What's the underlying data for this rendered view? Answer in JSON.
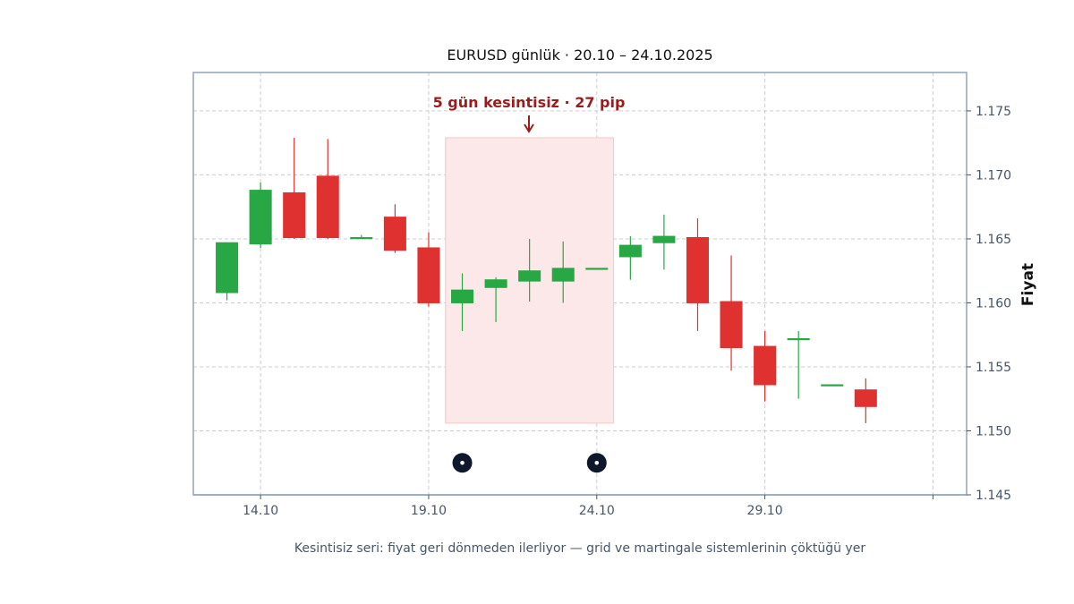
{
  "chart_data": {
    "type": "candlestick",
    "title": "EURUSD günlük · 20.10 – 24.10.2025",
    "ylabel": "Fiyat",
    "caption": "Kesintisiz seri: fiyat geri dönmeden ilerliyor — grid ve martingale sistemlerinin çöktüğü yer",
    "annotation": "5 gün kesintisiz · 27 pip",
    "ylim": [
      1.145,
      1.178
    ],
    "xlim": [
      -1,
      22
    ],
    "y_ticks": [
      "1.145",
      "1.150",
      "1.155",
      "1.160",
      "1.165",
      "1.170",
      "1.175"
    ],
    "x_ticks": [
      {
        "index": 1,
        "label": "14.10"
      },
      {
        "index": 6,
        "label": "19.10"
      },
      {
        "index": 11,
        "label": "24.10"
      },
      {
        "index": 16,
        "label": "29.10"
      },
      {
        "index": 21,
        "label": ""
      }
    ],
    "highlight_range": {
      "from_index": 6.5,
      "to_index": 11.5,
      "low": 1.1506,
      "high": 1.1729
    },
    "markers": [
      {
        "index": 7,
        "price": 1.1475
      },
      {
        "index": 11,
        "price": 1.1475
      }
    ],
    "grid": true,
    "colors": {
      "up": "#28a745",
      "down": "#e03131",
      "highlight": "#fce8e8",
      "marker": "#0f172a",
      "annotation": "#9b1c1c",
      "frame": "#94a3b8"
    },
    "candles": [
      {
        "o": 1.1608,
        "h": 1.1647,
        "l": 1.1602,
        "c": 1.1647
      },
      {
        "o": 1.1646,
        "h": 1.1694,
        "l": 1.1643,
        "c": 1.1688
      },
      {
        "o": 1.1686,
        "h": 1.1729,
        "l": 1.165,
        "c": 1.1651
      },
      {
        "o": 1.1699,
        "h": 1.1728,
        "l": 1.165,
        "c": 1.1651
      },
      {
        "o": 1.1651,
        "h": 1.1653,
        "l": 1.165,
        "c": 1.1651
      },
      {
        "o": 1.1667,
        "h": 1.1677,
        "l": 1.1639,
        "c": 1.1641
      },
      {
        "o": 1.1643,
        "h": 1.1655,
        "l": 1.1597,
        "c": 1.16
      },
      {
        "o": 1.16,
        "h": 1.1623,
        "l": 1.1578,
        "c": 1.161
      },
      {
        "o": 1.1612,
        "h": 1.162,
        "l": 1.1585,
        "c": 1.1618
      },
      {
        "o": 1.1617,
        "h": 1.165,
        "l": 1.1601,
        "c": 1.1625
      },
      {
        "o": 1.1617,
        "h": 1.1648,
        "l": 1.16,
        "c": 1.1627
      },
      {
        "o": 1.1627,
        "h": 1.1627,
        "l": 1.1627,
        "c": 1.1627
      },
      {
        "o": 1.1636,
        "h": 1.1652,
        "l": 1.1618,
        "c": 1.1645
      },
      {
        "o": 1.1647,
        "h": 1.1669,
        "l": 1.1626,
        "c": 1.1652
      },
      {
        "o": 1.1651,
        "h": 1.1666,
        "l": 1.1578,
        "c": 1.16
      },
      {
        "o": 1.1601,
        "h": 1.1637,
        "l": 1.1547,
        "c": 1.1565
      },
      {
        "o": 1.1566,
        "h": 1.1578,
        "l": 1.1523,
        "c": 1.1536
      },
      {
        "o": 1.1572,
        "h": 1.1578,
        "l": 1.1525,
        "c": 1.1572
      },
      {
        "o": 1.1536,
        "h": 1.1536,
        "l": 1.1536,
        "c": 1.1536
      },
      {
        "o": 1.1532,
        "h": 1.1541,
        "l": 1.1506,
        "c": 1.1519
      }
    ]
  }
}
